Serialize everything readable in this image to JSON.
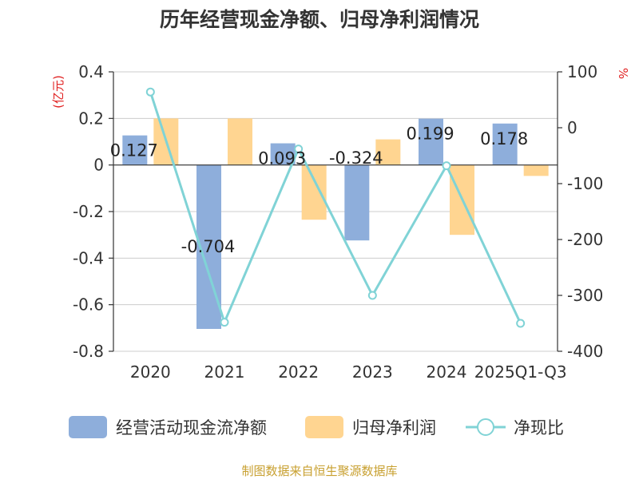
{
  "chart_data": {
    "type": "bar",
    "title": "历年经营现金净额、归母净利润情况",
    "categories": [
      "2020",
      "2021",
      "2022",
      "2023",
      "2024",
      "2025Q1-Q3"
    ],
    "series": [
      {
        "name": "经营活动现金流净额",
        "type": "bar",
        "axis": "left",
        "color": "#8eaedb",
        "values": [
          0.127,
          -0.704,
          0.093,
          -0.324,
          0.199,
          0.178
        ],
        "data_labels": [
          "0.127",
          "-0.704",
          "0.093",
          "-0.324",
          "0.199",
          "0.178"
        ]
      },
      {
        "name": "归母净利润",
        "type": "bar",
        "axis": "left",
        "color": "#ffd591",
        "values": [
          0.2,
          0.2,
          -0.235,
          0.11,
          -0.3,
          -0.047
        ]
      },
      {
        "name": "净现比",
        "type": "line",
        "axis": "right",
        "color": "#80d3d6",
        "values": [
          64,
          -348,
          -38,
          -300,
          -68,
          -350
        ]
      }
    ],
    "y_left": {
      "label": "(亿元)",
      "label_color": "#e02020",
      "ylim": [
        -0.8,
        0.4
      ],
      "ticks": [
        0.4,
        0.2,
        0,
        -0.2,
        -0.4,
        -0.6,
        -0.8
      ],
      "tick_labels": [
        "0.4",
        "0.2",
        "0",
        "-0.2",
        "-0.4",
        "-0.6",
        "-0.8"
      ]
    },
    "y_right": {
      "label": "%",
      "label_color": "#e02020",
      "ylim": [
        -400,
        100
      ],
      "ticks": [
        100,
        0,
        -100,
        -200,
        -300,
        -400
      ],
      "tick_labels": [
        "100",
        "0",
        "-100",
        "-200",
        "-300",
        "-400"
      ]
    },
    "grid": true,
    "legend_position": "bottom"
  },
  "footer": {
    "source": "制图数据来自恒生聚源数据库",
    "color": "#c8a030"
  }
}
